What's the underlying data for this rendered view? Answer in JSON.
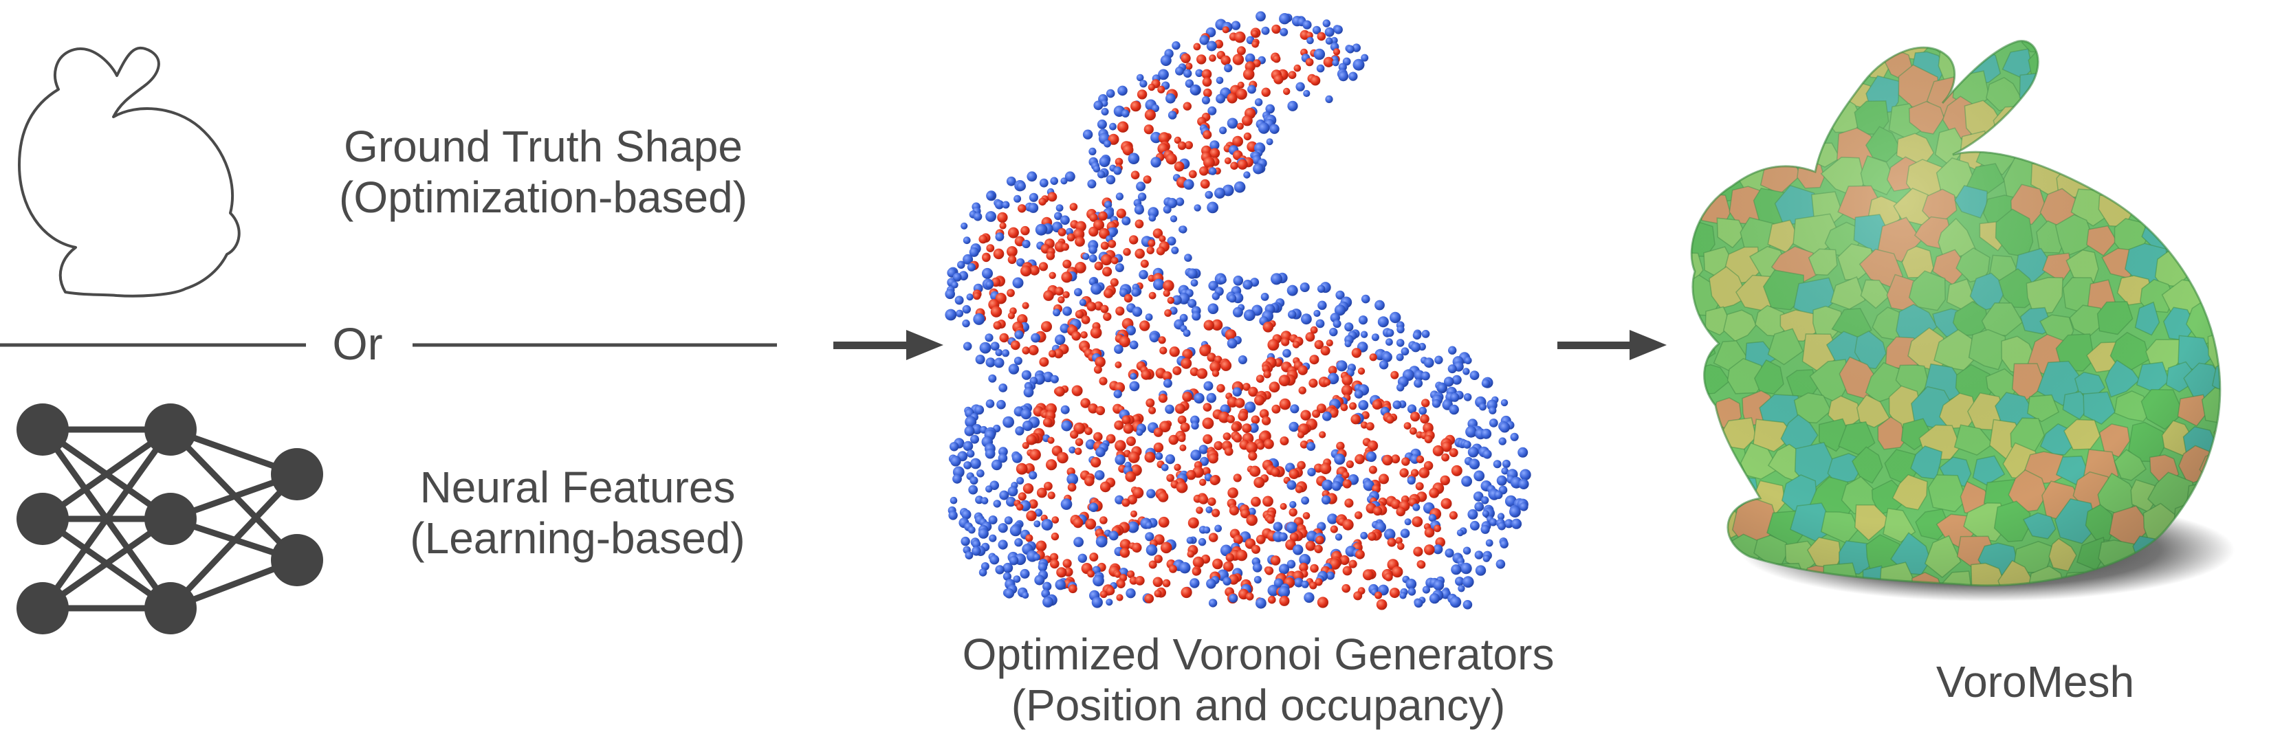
{
  "inputs": {
    "ground_truth": {
      "line1": "Ground Truth Shape",
      "line2": "(Optimization-based)"
    },
    "separator": "Or",
    "neural": {
      "line1": "Neural Features",
      "line2": "(Learning-based)"
    }
  },
  "middle": {
    "line1": "Optimized Voronoi Generators",
    "line2": "(Position and occupancy)"
  },
  "output": {
    "label": "VoroMesh"
  },
  "colors": {
    "text": "#4a4a4a",
    "network": "#444444",
    "generator_inside": "#e2321b",
    "generator_outside": "#3a63d8",
    "mesh_cells": [
      "#5fbf5f",
      "#78c96a",
      "#4fb8a8",
      "#c5c56a",
      "#d39a6a",
      "#8fcf6f"
    ]
  },
  "icons": [
    "bunny-outline-icon",
    "neural-network-icon",
    "arrow-right-icon"
  ]
}
